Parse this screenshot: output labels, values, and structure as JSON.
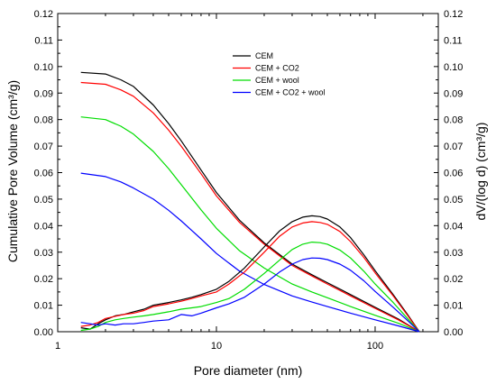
{
  "chart_data": {
    "type": "line",
    "title": "",
    "xlabel": "Pore diameter (nm)",
    "ylabel": "Cumulative Pore Volume (cm³/g)",
    "y2label": "dV/(log d) (cm³/g)",
    "xscale": "log",
    "xlim": [
      1,
      250
    ],
    "ylim": [
      0,
      0.12
    ],
    "y2lim": [
      0,
      0.12
    ],
    "xticks": [
      1,
      10,
      100
    ],
    "xtick_labels": [
      "1",
      "10",
      "100"
    ],
    "yticks": [
      0.0,
      0.01,
      0.02,
      0.03,
      0.04,
      0.05,
      0.06,
      0.07,
      0.08,
      0.09,
      0.1,
      0.11,
      0.12
    ],
    "ytick_labels": [
      "0.00",
      "0.01",
      "0.02",
      "0.03",
      "0.04",
      "0.05",
      "0.06",
      "0.07",
      "0.08",
      "0.09",
      "0.10",
      "0.11",
      "0.12"
    ],
    "grid": false,
    "legend_position": "top-center",
    "series": [
      {
        "name": "CEM",
        "color": "#000000",
        "kind": "cumulative",
        "x": [
          1.4,
          2,
          2.5,
          3,
          4,
          5,
          6,
          8,
          10,
          14,
          20,
          30,
          40,
          50,
          70,
          100,
          140,
          190
        ],
        "y": [
          0.0978,
          0.0972,
          0.095,
          0.0925,
          0.0855,
          0.0785,
          0.072,
          0.061,
          0.0525,
          0.042,
          0.0335,
          0.0255,
          0.0215,
          0.0185,
          0.014,
          0.0092,
          0.0048,
          0.0
        ]
      },
      {
        "name": "CEM + CO2",
        "color": "#ff0000",
        "kind": "cumulative",
        "x": [
          1.4,
          2,
          2.5,
          3,
          4,
          5,
          6,
          8,
          10,
          14,
          20,
          30,
          40,
          50,
          70,
          100,
          140,
          190
        ],
        "y": [
          0.094,
          0.0933,
          0.0912,
          0.0888,
          0.0825,
          0.076,
          0.07,
          0.0596,
          0.0512,
          0.0412,
          0.033,
          0.025,
          0.021,
          0.018,
          0.0135,
          0.0088,
          0.0045,
          0.0
        ]
      },
      {
        "name": "CEM + wool",
        "color": "#00dd00",
        "kind": "cumulative",
        "x": [
          1.4,
          2,
          2.5,
          3,
          4,
          5,
          6,
          8,
          10,
          14,
          20,
          30,
          40,
          50,
          70,
          100,
          140,
          190
        ],
        "y": [
          0.081,
          0.08,
          0.0775,
          0.0745,
          0.068,
          0.0615,
          0.0555,
          0.046,
          0.039,
          0.0305,
          0.024,
          0.018,
          0.015,
          0.0128,
          0.0095,
          0.0062,
          0.0032,
          0.0
        ]
      },
      {
        "name": "CEM + CO2 + wool",
        "color": "#0000ff",
        "kind": "cumulative",
        "x": [
          1.4,
          2,
          2.5,
          3,
          4,
          5,
          6,
          8,
          10,
          14,
          20,
          30,
          40,
          50,
          70,
          100,
          140,
          190
        ],
        "y": [
          0.0598,
          0.0585,
          0.0565,
          0.0542,
          0.05,
          0.0458,
          0.0418,
          0.035,
          0.0295,
          0.0228,
          0.0178,
          0.0135,
          0.0112,
          0.0095,
          0.007,
          0.0045,
          0.0022,
          0.0
        ]
      },
      {
        "name": "CEM",
        "color": "#000000",
        "kind": "differential",
        "x": [
          1.4,
          1.6,
          1.8,
          2,
          2.3,
          2.6,
          3,
          3.5,
          4,
          5,
          6,
          7,
          8,
          10,
          12,
          15,
          20,
          25,
          30,
          35,
          40,
          45,
          50,
          60,
          70,
          85,
          100,
          130,
          160,
          190
        ],
        "y": [
          0.0015,
          0.001,
          0.003,
          0.0045,
          0.006,
          0.0065,
          0.0075,
          0.0085,
          0.01,
          0.011,
          0.012,
          0.013,
          0.014,
          0.016,
          0.019,
          0.024,
          0.032,
          0.038,
          0.0415,
          0.0432,
          0.0437,
          0.0434,
          0.0425,
          0.0395,
          0.0355,
          0.029,
          0.023,
          0.014,
          0.0065,
          0.0
        ]
      },
      {
        "name": "CEM + CO2",
        "color": "#ff0000",
        "kind": "differential",
        "x": [
          1.4,
          1.6,
          1.8,
          2,
          2.3,
          2.6,
          3,
          3.5,
          4,
          5,
          6,
          7,
          8,
          10,
          12,
          15,
          20,
          25,
          30,
          35,
          40,
          45,
          50,
          60,
          70,
          85,
          100,
          130,
          160,
          190
        ],
        "y": [
          0.002,
          0.0025,
          0.0035,
          0.005,
          0.0058,
          0.0065,
          0.007,
          0.008,
          0.0095,
          0.0105,
          0.0115,
          0.0125,
          0.0135,
          0.015,
          0.018,
          0.0225,
          0.03,
          0.036,
          0.0395,
          0.041,
          0.0415,
          0.0412,
          0.0405,
          0.0378,
          0.034,
          0.028,
          0.0222,
          0.0135,
          0.0062,
          0.0
        ]
      },
      {
        "name": "CEM + wool",
        "color": "#00dd00",
        "kind": "differential",
        "x": [
          1.4,
          1.6,
          1.8,
          2,
          2.3,
          2.6,
          3,
          3.5,
          4,
          5,
          6,
          7,
          8,
          10,
          12,
          15,
          20,
          25,
          30,
          35,
          40,
          45,
          50,
          60,
          70,
          85,
          100,
          130,
          160,
          190
        ],
        "y": [
          0.0005,
          0.001,
          0.002,
          0.0035,
          0.0045,
          0.005,
          0.0055,
          0.006,
          0.0065,
          0.0075,
          0.0085,
          0.009,
          0.0095,
          0.011,
          0.0125,
          0.016,
          0.022,
          0.027,
          0.031,
          0.033,
          0.0338,
          0.0336,
          0.033,
          0.0308,
          0.0278,
          0.0228,
          0.018,
          0.011,
          0.005,
          0.0
        ]
      },
      {
        "name": "CEM + CO2 + wool",
        "color": "#0000ff",
        "kind": "differential",
        "x": [
          1.4,
          1.6,
          1.8,
          2,
          2.3,
          2.6,
          3,
          3.5,
          4,
          5,
          6,
          7,
          8,
          10,
          12,
          15,
          20,
          25,
          30,
          35,
          40,
          45,
          50,
          60,
          70,
          85,
          100,
          130,
          160,
          190
        ],
        "y": [
          0.0035,
          0.003,
          0.0025,
          0.003,
          0.0025,
          0.003,
          0.003,
          0.0035,
          0.004,
          0.0045,
          0.0065,
          0.006,
          0.007,
          0.009,
          0.0105,
          0.013,
          0.018,
          0.0225,
          0.0255,
          0.0272,
          0.0278,
          0.0277,
          0.0272,
          0.0255,
          0.0232,
          0.0192,
          0.0152,
          0.0092,
          0.0042,
          0.0
        ]
      }
    ],
    "legend": [
      {
        "name": "CEM",
        "color": "#000000"
      },
      {
        "name": "CEM + CO2",
        "color": "#ff0000"
      },
      {
        "name": "CEM + wool",
        "color": "#00dd00"
      },
      {
        "name": "CEM + CO2 + wool",
        "color": "#0000ff"
      }
    ]
  }
}
